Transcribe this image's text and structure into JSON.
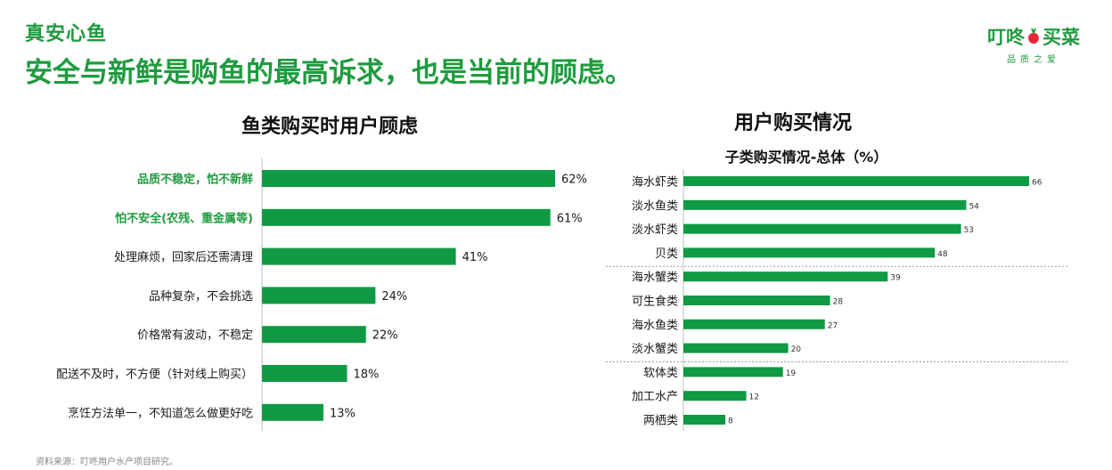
{
  "brand": {
    "logo_text": "真安心鱼"
  },
  "headline": "安全与新鲜是购鱼的最高诉求，也是当前的顾虑。",
  "corner_logo": {
    "name_left": "叮咚",
    "name_right": "买菜",
    "tagline": "品质之爱"
  },
  "colors": {
    "accent": "#1f9b3f",
    "bar": "#0f9a43",
    "highlight_text": "#1f9b3f"
  },
  "chart_data": [
    {
      "type": "bar",
      "orientation": "horizontal",
      "title": "鱼类购买时用户顾虑",
      "categories": [
        "品质不稳定，怕不新鲜",
        "怕不安全(农残、重金属等)",
        "处理麻烦，回家后还需清理",
        "品种复杂，不会挑选",
        "价格常有波动，不稳定",
        "配送不及时，不方便（针对线上购买）",
        "烹饪方法单一，不知道怎么做更好吃"
      ],
      "values": [
        62,
        61,
        41,
        24,
        22,
        18,
        13
      ],
      "value_labels": [
        "62%",
        "61%",
        "41%",
        "24%",
        "22%",
        "18%",
        "13%"
      ],
      "highlighted": [
        true,
        true,
        false,
        false,
        false,
        false,
        false
      ],
      "unit": "%",
      "xlim": [
        0,
        62
      ]
    },
    {
      "type": "bar",
      "orientation": "horizontal",
      "title": "用户购买情况",
      "subtitle": "子类购买情况-总体（%）",
      "categories": [
        "海水虾类",
        "淡水鱼类",
        "淡水虾类",
        "贝类",
        "海水蟹类",
        "可生食类",
        "海水鱼类",
        "淡水蟹类",
        "软体类",
        "加工水产",
        "两栖类"
      ],
      "values": [
        66,
        54,
        53,
        48,
        39,
        28,
        27,
        20,
        19,
        12,
        8
      ],
      "value_labels": [
        "66",
        "54",
        "53",
        "48",
        "39",
        "28",
        "27",
        "20",
        "19",
        "12",
        "8"
      ],
      "group_separators_after": [
        "贝类",
        "淡水蟹类"
      ],
      "xlim": [
        0,
        66
      ]
    }
  ],
  "source_note": "资料来源：叮咚用户水产项目研究。"
}
